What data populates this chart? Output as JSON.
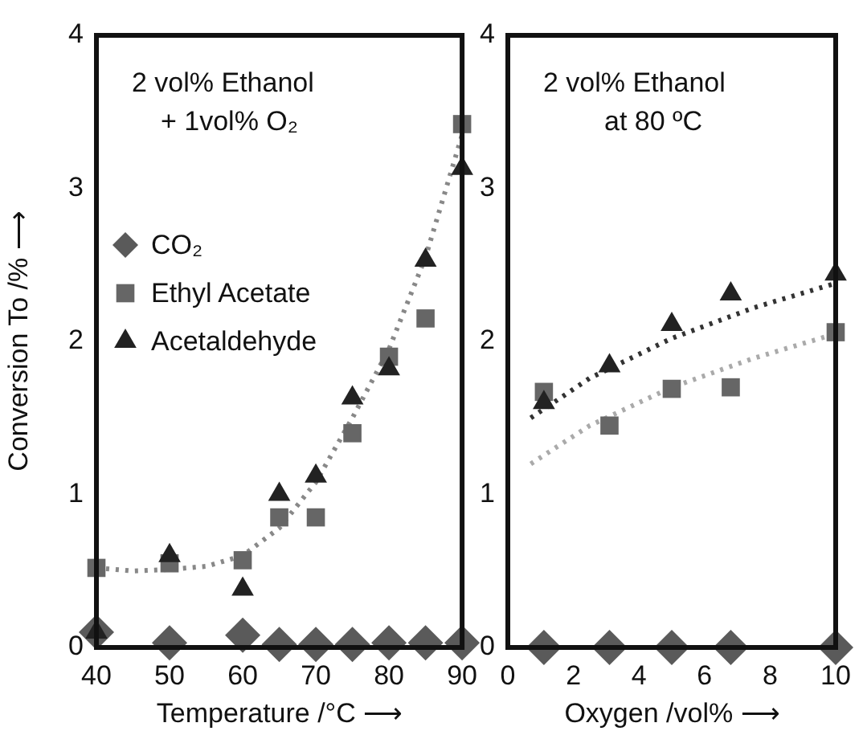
{
  "chart_data": [
    {
      "type": "scatter",
      "xlabel": "Temperature /°C ⟶",
      "ylabel": "Conversion To /% ⟶",
      "x": [
        40,
        50,
        60,
        65,
        70,
        75,
        80,
        85,
        90
      ],
      "xlim": [
        40,
        90
      ],
      "xticks": [
        40,
        50,
        60,
        70,
        80,
        90
      ],
      "ylim": [
        0,
        4
      ],
      "yticks": [
        0,
        1,
        2,
        3,
        4
      ],
      "grid": false,
      "legend": "left",
      "annotations": [
        "2 vol% Ethanol",
        "+ 1vol% O₂"
      ],
      "series": [
        {
          "name": "CO₂",
          "color": "#5a5a5a",
          "marker": "diamond",
          "values": [
            0.1,
            0.03,
            0.08,
            0.02,
            0.02,
            0.02,
            0.03,
            0.03,
            0.03
          ]
        },
        {
          "name": "Ethyl Acetate",
          "color": "#666666",
          "marker": "square",
          "values": [
            0.52,
            0.55,
            0.57,
            0.85,
            0.85,
            1.4,
            1.9,
            2.15,
            3.42
          ]
        },
        {
          "name": "Acetaldehyde",
          "color": "#222222",
          "marker": "triangle",
          "values": [
            0.1,
            0.6,
            0.38,
            1.0,
            1.12,
            1.63,
            1.82,
            2.53,
            3.13
          ]
        },
        {
          "type": "line",
          "color": "#888888",
          "line_style": "dotted",
          "marker": "none",
          "x": [
            40,
            45,
            50,
            55,
            60,
            65,
            70,
            75,
            80,
            85,
            90
          ],
          "values": [
            0.52,
            0.5,
            0.51,
            0.53,
            0.6,
            0.78,
            1.08,
            1.5,
            1.95,
            2.55,
            3.35
          ]
        }
      ]
    },
    {
      "type": "scatter",
      "xlabel": "Oxygen /vol% ⟶",
      "x": [
        1.1,
        3.1,
        5,
        6.8,
        10
      ],
      "xlim": [
        0,
        10
      ],
      "xticks": [
        0,
        2,
        4,
        6,
        8,
        10
      ],
      "ylim": [
        0,
        4
      ],
      "yticks": [
        0,
        1,
        2,
        3,
        4
      ],
      "grid": false,
      "annotations": [
        "2 vol% Ethanol",
        "at 80 ºC"
      ],
      "series": [
        {
          "color": "#5a5a5a",
          "marker": "diamond",
          "values": [
            0,
            0,
            0,
            0,
            0
          ]
        },
        {
          "color": "#666666",
          "marker": "square",
          "values": [
            1.67,
            1.45,
            1.69,
            1.7,
            2.06
          ]
        },
        {
          "color": "#222222",
          "marker": "triangle",
          "values": [
            1.6,
            1.84,
            2.11,
            2.31,
            2.44
          ]
        },
        {
          "type": "line",
          "color": "#333333",
          "line_style": "dotted",
          "marker": "none",
          "x": [
            0.7,
            2.5,
            5,
            7.5,
            10
          ],
          "values": [
            1.5,
            1.76,
            2.02,
            2.22,
            2.38
          ]
        },
        {
          "type": "line",
          "color": "#aaaaaa",
          "line_style": "dotted",
          "marker": "none",
          "x": [
            0.7,
            2.5,
            5,
            7.5,
            10
          ],
          "values": [
            1.2,
            1.45,
            1.7,
            1.89,
            2.05
          ]
        }
      ]
    }
  ]
}
